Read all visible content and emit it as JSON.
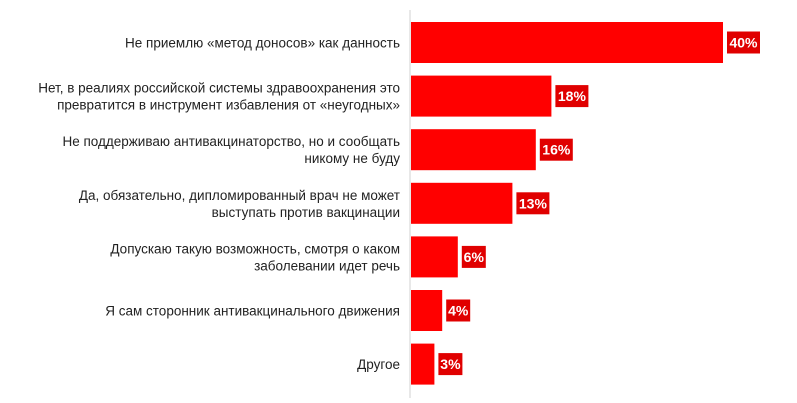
{
  "chart_data": {
    "type": "bar",
    "orientation": "horizontal",
    "grid": false,
    "legend": "none",
    "bar_color": "#ff0000",
    "label_box_color": "#e00000",
    "label_text_color": "#ffffff",
    "axis_color": "#d0d0d0",
    "xlim": [
      0,
      40
    ],
    "categories": [
      [
        "Не приемлю «метод доносов» как данность"
      ],
      [
        "Нет, в реалиях российской системы здравоохранения это",
        "превратится в инструмент избавления от «неугодных»"
      ],
      [
        "Не поддерживаю антивакцинаторство, но и сообщать",
        "никому не буду"
      ],
      [
        "Да, обязательно, дипломированный врач не может",
        "выступать против вакцинации"
      ],
      [
        "Допускаю такую возможность, смотря о каком",
        "заболевании идет речь"
      ],
      [
        "Я сам сторонник антивакцинального движения"
      ],
      [
        "Другое"
      ]
    ],
    "values": [
      40,
      18,
      16,
      13,
      6,
      4,
      3
    ],
    "value_labels": [
      "40%",
      "18%",
      "16%",
      "13%",
      "6%",
      "4%",
      "3%"
    ]
  }
}
